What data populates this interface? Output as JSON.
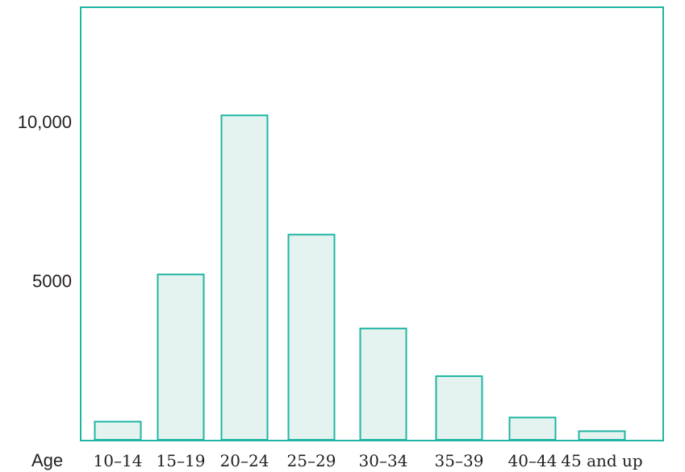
{
  "chart_data": {
    "type": "bar",
    "title": "",
    "xlabel": "Age",
    "ylabel": "",
    "categories": [
      "10–14",
      "15–19",
      "20–24",
      "25–29",
      "30–34",
      "35–39",
      "40–44",
      "45 and up"
    ],
    "values": [
      570,
      5200,
      10200,
      6450,
      3500,
      2000,
      700,
      270
    ],
    "ylim": [
      0,
      13600
    ],
    "yticks": [
      {
        "value": 5000,
        "label": "5000"
      },
      {
        "value": 10000,
        "label": "10,000"
      }
    ],
    "grid": false,
    "legend": "none",
    "colors": {
      "frame": "#1fb5a2",
      "bar_fill": "#e4f3ef",
      "bar_stroke": "#1fb5a2",
      "text": "#231f20"
    }
  }
}
